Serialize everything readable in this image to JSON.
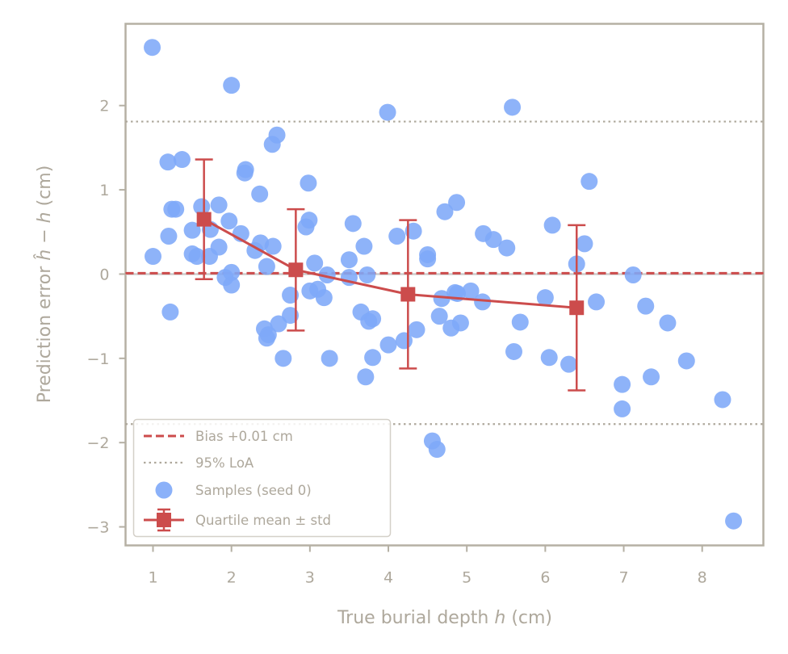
{
  "chart_data": {
    "type": "scatter",
    "xlabel_prefix": "True burial depth ",
    "xlabel_var": "h",
    "xlabel_suffix": " (cm)",
    "ylabel_prefix": "Prediction error ",
    "ylabel_var1": "ĥ",
    "ylabel_mid": " − ",
    "ylabel_var2": "h",
    "ylabel_suffix": " (cm)",
    "xlim": [
      0.65,
      8.78
    ],
    "ylim": [
      -3.22,
      2.97
    ],
    "xticks": [
      1,
      2,
      3,
      4,
      5,
      6,
      7,
      8
    ],
    "yticks": [
      -3,
      -2,
      -1,
      0,
      1,
      2
    ],
    "ytick_labels": [
      "−3",
      "−2",
      "−1",
      "0",
      "1",
      "2"
    ],
    "legend_position": "lower-left",
    "grid": false,
    "colors": {
      "samples": "#7ea8f8",
      "bias": "#cc4c4c",
      "loa": "#aea89c",
      "axis": "#b5b0a4",
      "text": "#aea89c",
      "zero_line": "#cccccc"
    },
    "bias": {
      "label": "Bias +0.01 cm",
      "value": 0.01
    },
    "loa": {
      "label": "95% LoA",
      "values": [
        1.81,
        -1.78
      ]
    },
    "samples": {
      "label": "Samples (seed 0)",
      "points": [
        [
          0.99,
          2.69
        ],
        [
          1.0,
          0.21
        ],
        [
          1.19,
          1.33
        ],
        [
          1.2,
          0.45
        ],
        [
          1.22,
          -0.45
        ],
        [
          1.24,
          0.77
        ],
        [
          1.29,
          0.77
        ],
        [
          1.37,
          1.36
        ],
        [
          1.5,
          0.24
        ],
        [
          1.5,
          0.52
        ],
        [
          1.56,
          0.21
        ],
        [
          1.62,
          0.8
        ],
        [
          1.72,
          0.21
        ],
        [
          1.73,
          0.53
        ],
        [
          1.84,
          0.82
        ],
        [
          1.84,
          0.32
        ],
        [
          1.92,
          -0.04
        ],
        [
          1.97,
          0.63
        ],
        [
          2.0,
          2.24
        ],
        [
          2.0,
          0.02
        ],
        [
          2.0,
          -0.13
        ],
        [
          2.12,
          0.48
        ],
        [
          2.17,
          1.2
        ],
        [
          2.18,
          1.24
        ],
        [
          2.3,
          0.28
        ],
        [
          2.36,
          0.95
        ],
        [
          2.37,
          0.37
        ],
        [
          2.42,
          -0.65
        ],
        [
          2.45,
          0.09
        ],
        [
          2.45,
          -0.76
        ],
        [
          2.47,
          -0.72
        ],
        [
          2.52,
          1.54
        ],
        [
          2.53,
          0.33
        ],
        [
          2.58,
          1.65
        ],
        [
          2.6,
          -0.59
        ],
        [
          2.66,
          -1.0
        ],
        [
          2.75,
          -0.25
        ],
        [
          2.75,
          -0.49
        ],
        [
          2.95,
          0.56
        ],
        [
          2.98,
          1.08
        ],
        [
          2.99,
          0.64
        ],
        [
          3.0,
          -0.2
        ],
        [
          3.06,
          0.13
        ],
        [
          3.1,
          -0.18
        ],
        [
          3.18,
          -0.28
        ],
        [
          3.22,
          -0.01
        ],
        [
          3.25,
          -1.0
        ],
        [
          3.5,
          0.17
        ],
        [
          3.5,
          -0.04
        ],
        [
          3.55,
          0.6
        ],
        [
          3.65,
          -0.45
        ],
        [
          3.69,
          0.33
        ],
        [
          3.71,
          -1.22
        ],
        [
          3.73,
          -0.01
        ],
        [
          3.75,
          -0.56
        ],
        [
          3.8,
          -0.53
        ],
        [
          3.8,
          -0.99
        ],
        [
          3.99,
          1.92
        ],
        [
          4.0,
          -0.84
        ],
        [
          4.11,
          0.45
        ],
        [
          4.2,
          -0.79
        ],
        [
          4.32,
          0.51
        ],
        [
          4.36,
          -0.66
        ],
        [
          4.5,
          0.23
        ],
        [
          4.5,
          0.18
        ],
        [
          4.56,
          -1.98
        ],
        [
          4.62,
          -2.08
        ],
        [
          4.65,
          -0.5
        ],
        [
          4.68,
          -0.29
        ],
        [
          4.72,
          0.74
        ],
        [
          4.8,
          -0.64
        ],
        [
          4.85,
          -0.22
        ],
        [
          4.87,
          0.85
        ],
        [
          4.88,
          -0.23
        ],
        [
          4.92,
          -0.58
        ],
        [
          5.05,
          -0.2
        ],
        [
          5.2,
          -0.33
        ],
        [
          5.21,
          0.48
        ],
        [
          5.34,
          0.41
        ],
        [
          5.51,
          0.31
        ],
        [
          5.58,
          1.98
        ],
        [
          5.6,
          -0.92
        ],
        [
          5.68,
          -0.57
        ],
        [
          6.0,
          -0.28
        ],
        [
          6.05,
          -0.99
        ],
        [
          6.09,
          0.58
        ],
        [
          6.3,
          -1.07
        ],
        [
          6.4,
          0.12
        ],
        [
          6.5,
          0.36
        ],
        [
          6.56,
          1.1
        ],
        [
          6.65,
          -0.33
        ],
        [
          6.98,
          -1.31
        ],
        [
          6.98,
          -1.6
        ],
        [
          7.12,
          -0.01
        ],
        [
          7.28,
          -0.38
        ],
        [
          7.35,
          -1.22
        ],
        [
          7.56,
          -0.58
        ],
        [
          7.8,
          -1.03
        ],
        [
          8.26,
          -1.49
        ],
        [
          8.4,
          -2.93
        ]
      ]
    },
    "quartile": {
      "label": "Quartile mean ± std",
      "x": [
        1.65,
        2.82,
        4.25,
        6.4
      ],
      "mean": [
        0.65,
        0.05,
        -0.24,
        -0.4
      ],
      "std": [
        0.71,
        0.72,
        0.88,
        0.98
      ]
    }
  }
}
